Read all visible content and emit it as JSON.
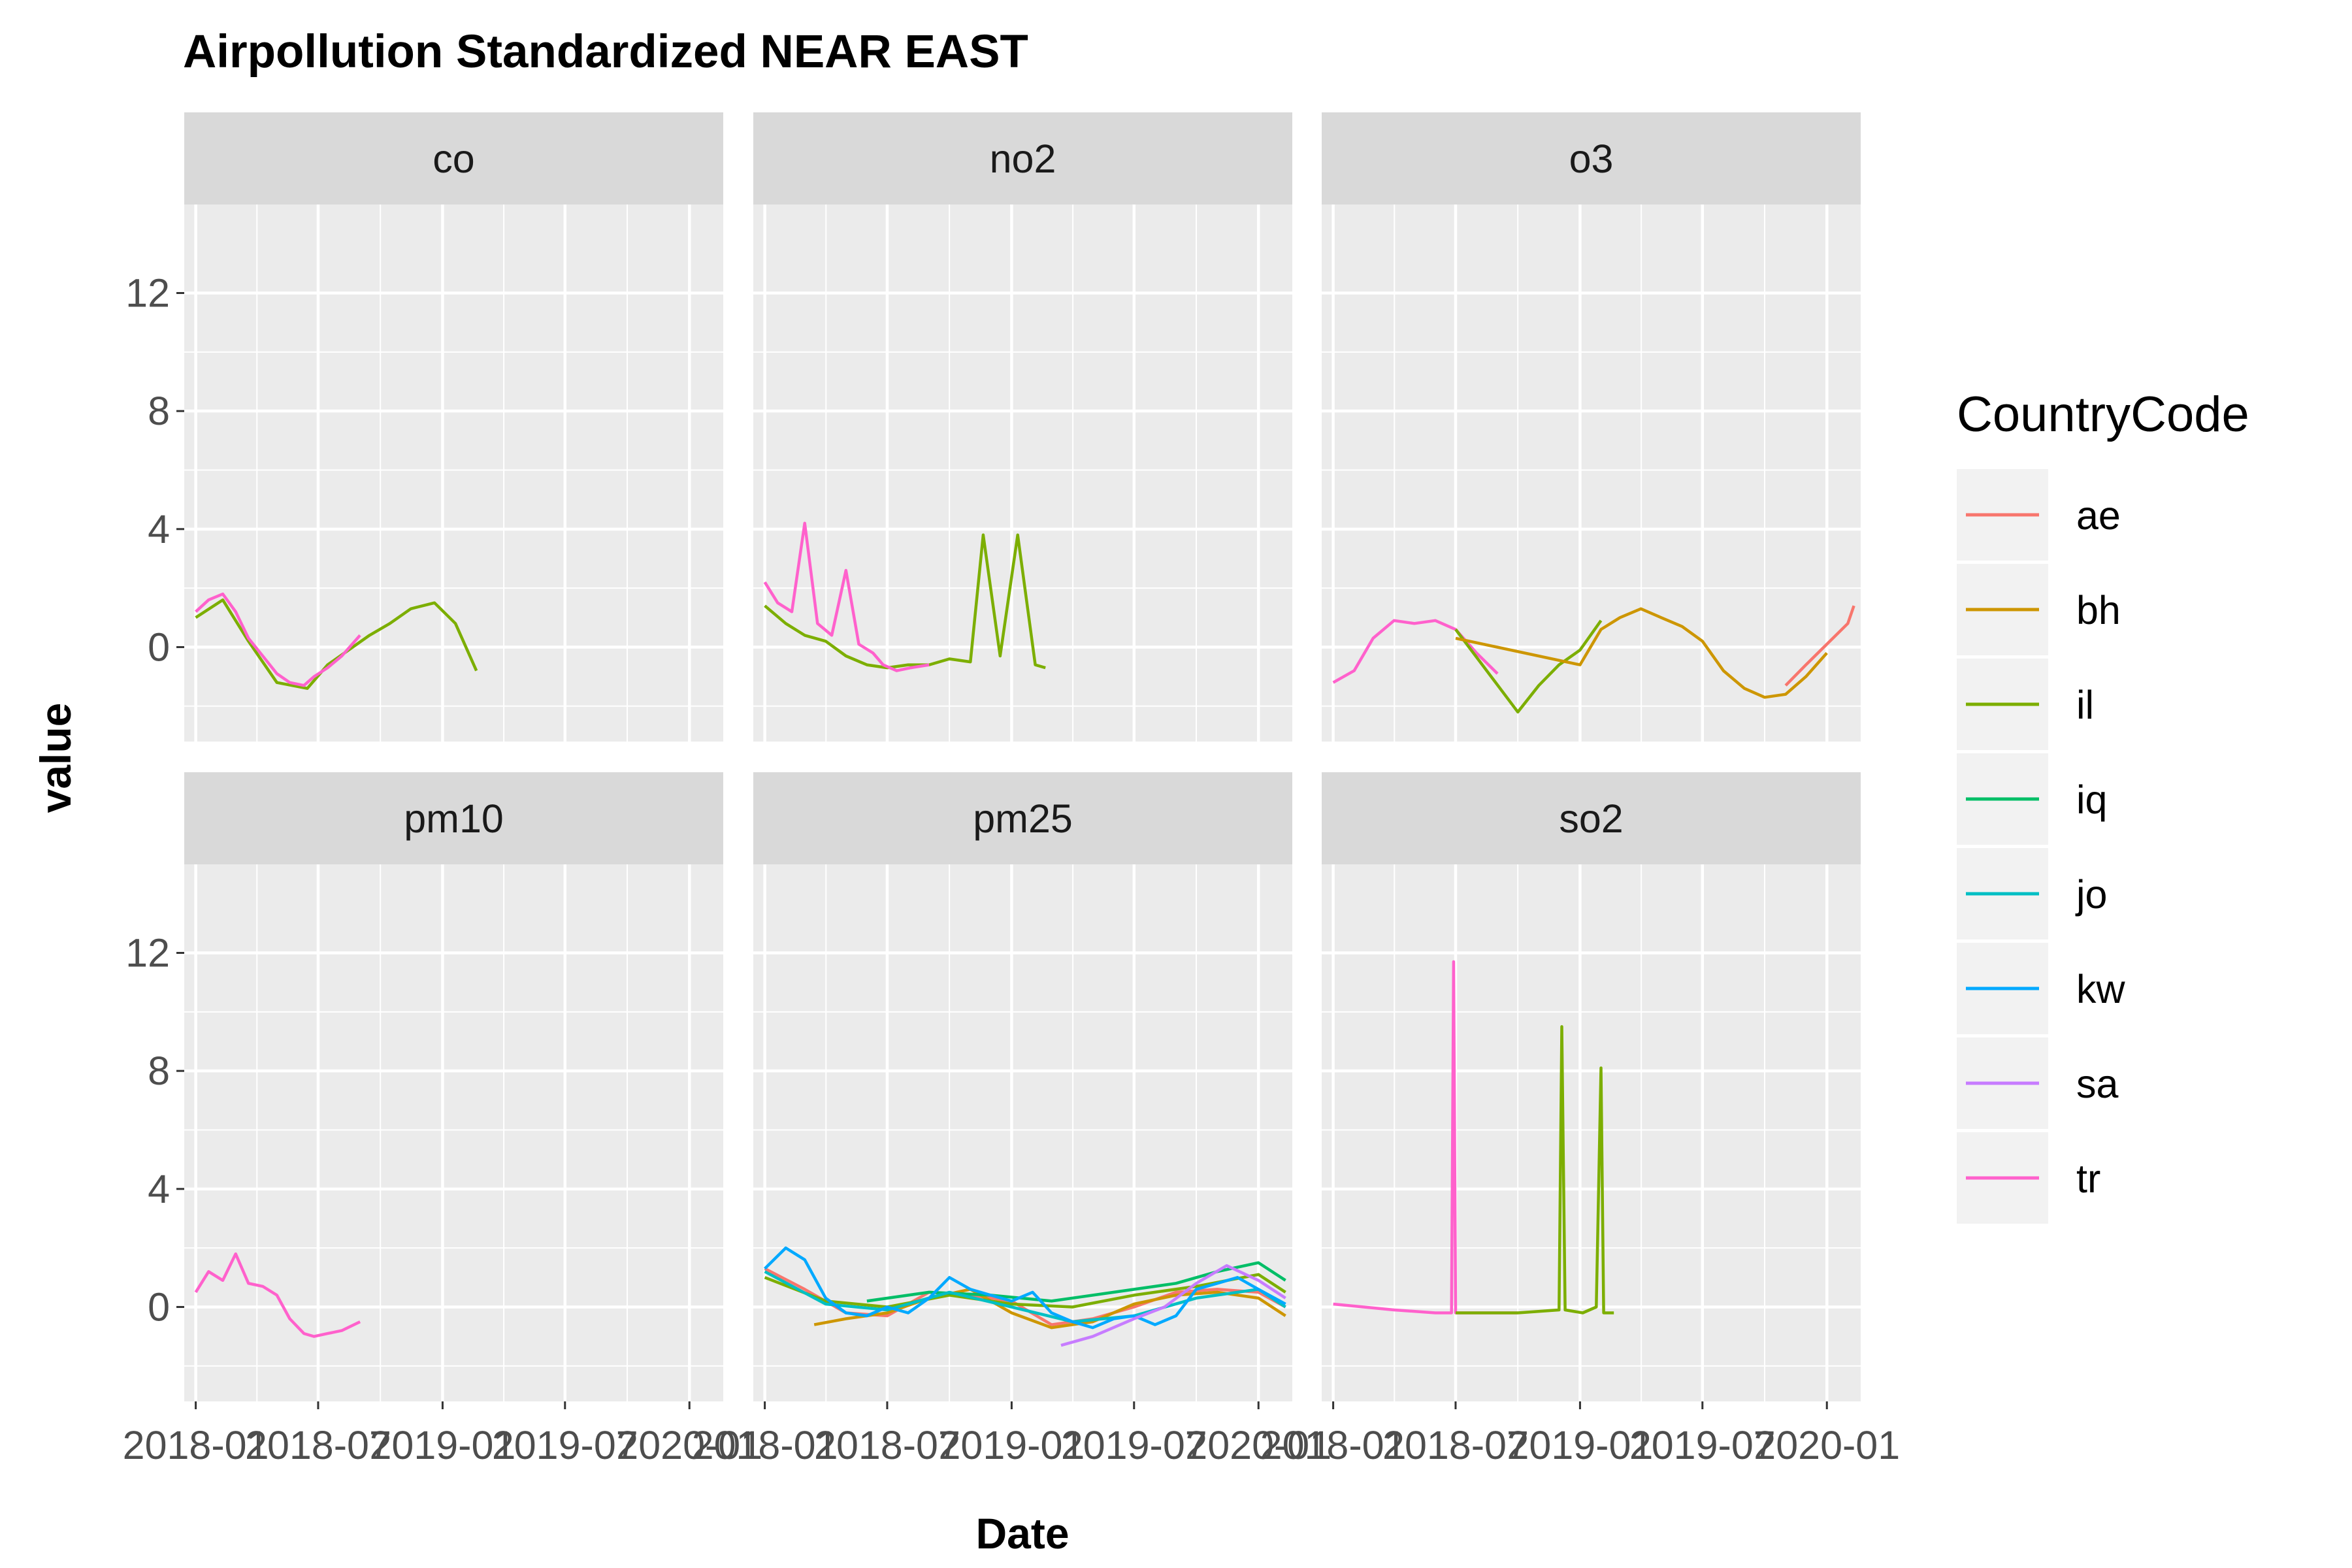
{
  "chart_data": {
    "type": "line",
    "title": "Airpollution Standardized NEAR EAST",
    "xlabel": "Date",
    "ylabel": "value",
    "x_tick_labels": [
      "2018-01",
      "2018-07",
      "2019-01",
      "2019-07",
      "2020-01"
    ],
    "x_tick_dates": [
      "2018-01-01",
      "2018-07-01",
      "2019-01-01",
      "2019-07-01",
      "2020-01-01"
    ],
    "xlim": [
      "2017-12-15",
      "2020-02-20"
    ],
    "y_ticks": [
      0,
      4,
      8,
      12
    ],
    "ylim": [
      -3.2,
      15
    ],
    "grid": true,
    "legend": {
      "title": "CountryCode",
      "placement": "right",
      "items": [
        {
          "code": "ae",
          "color": "#F8766D"
        },
        {
          "code": "bh",
          "color": "#CD9600"
        },
        {
          "code": "il",
          "color": "#7CAE00"
        },
        {
          "code": "iq",
          "color": "#00BE67"
        },
        {
          "code": "jo",
          "color": "#00BFC4"
        },
        {
          "code": "kw",
          "color": "#00A9FF"
        },
        {
          "code": "sa",
          "color": "#C77CFF"
        },
        {
          "code": "tr",
          "color": "#FF61CC"
        }
      ]
    },
    "facets": [
      {
        "name": "co",
        "series": [
          {
            "country": "il",
            "x": [
              "2018-01-01",
              "2018-02-10",
              "2018-03-20",
              "2018-05-01",
              "2018-06-15",
              "2018-07-15",
              "2018-08-15",
              "2018-09-15",
              "2018-10-15",
              "2018-11-15",
              "2018-12-20",
              "2019-01-20",
              "2019-02-20"
            ],
            "y": [
              1.0,
              1.6,
              0.2,
              -1.2,
              -1.4,
              -0.6,
              -0.1,
              0.4,
              0.8,
              1.3,
              1.5,
              0.8,
              -0.8
            ]
          },
          {
            "country": "tr",
            "x": [
              "2018-01-01",
              "2018-01-20",
              "2018-02-10",
              "2018-03-01",
              "2018-03-20",
              "2018-04-10",
              "2018-05-01",
              "2018-05-20",
              "2018-06-10",
              "2018-06-25",
              "2018-07-15",
              "2018-08-05",
              "2018-09-01"
            ],
            "y": [
              1.2,
              1.6,
              1.8,
              1.2,
              0.3,
              -0.3,
              -0.9,
              -1.2,
              -1.3,
              -1.0,
              -0.7,
              -0.3,
              0.4
            ]
          }
        ]
      },
      {
        "name": "no2",
        "series": [
          {
            "country": "il",
            "x": [
              "2018-01-01",
              "2018-02-01",
              "2018-03-01",
              "2018-04-01",
              "2018-05-01",
              "2018-06-01",
              "2018-07-01",
              "2018-08-01",
              "2018-09-01",
              "2018-10-01",
              "2018-11-01",
              "2018-11-20",
              "2018-12-15",
              "2019-01-10",
              "2019-02-05",
              "2019-02-20"
            ],
            "y": [
              1.4,
              0.8,
              0.4,
              0.2,
              -0.3,
              -0.6,
              -0.7,
              -0.6,
              -0.6,
              -0.4,
              -0.5,
              3.8,
              -0.3,
              3.8,
              -0.6,
              -0.7
            ]
          },
          {
            "country": "tr",
            "x": [
              "2018-01-01",
              "2018-01-20",
              "2018-02-10",
              "2018-03-01",
              "2018-03-20",
              "2018-04-10",
              "2018-05-01",
              "2018-05-20",
              "2018-06-10",
              "2018-06-25",
              "2018-07-15",
              "2018-08-05",
              "2018-09-01"
            ],
            "y": [
              2.2,
              1.5,
              1.2,
              4.2,
              0.8,
              0.4,
              2.6,
              0.1,
              -0.2,
              -0.6,
              -0.8,
              -0.7,
              -0.6
            ]
          }
        ]
      },
      {
        "name": "o3",
        "series": [
          {
            "country": "tr",
            "x": [
              "2018-01-01",
              "2018-02-01",
              "2018-03-01",
              "2018-04-01",
              "2018-05-01",
              "2018-06-01",
              "2018-07-01",
              "2018-08-01",
              "2018-09-01"
            ],
            "y": [
              -1.2,
              -0.8,
              0.3,
              0.9,
              0.8,
              0.9,
              0.6,
              -0.2,
              -0.9
            ]
          },
          {
            "country": "il",
            "x": [
              "2018-07-01",
              "2018-10-01",
              "2018-11-01",
              "2018-12-01",
              "2019-01-01",
              "2019-02-01"
            ],
            "y": [
              0.6,
              -2.2,
              -1.3,
              -0.6,
              -0.1,
              0.9
            ]
          },
          {
            "country": "bh",
            "x": [
              "2018-07-01",
              "2019-01-01",
              "2019-02-01",
              "2019-03-01",
              "2019-04-01",
              "2019-05-01",
              "2019-06-01",
              "2019-07-01",
              "2019-08-01",
              "2019-09-01",
              "2019-10-01",
              "2019-11-01",
              "2019-12-01",
              "2020-01-01"
            ],
            "y": [
              0.3,
              -0.6,
              0.6,
              1.0,
              1.3,
              1.0,
              0.7,
              0.2,
              -0.8,
              -1.4,
              -1.7,
              -1.6,
              -1.0,
              -0.2
            ]
          },
          {
            "country": "ae",
            "x": [
              "2019-11-01",
              "2019-12-01",
              "2020-01-01",
              "2020-02-01",
              "2020-02-10"
            ],
            "y": [
              -1.3,
              -0.6,
              0.1,
              0.8,
              1.4
            ]
          }
        ]
      },
      {
        "name": "pm10",
        "series": [
          {
            "country": "tr",
            "x": [
              "2018-01-01",
              "2018-01-20",
              "2018-02-10",
              "2018-03-01",
              "2018-03-20",
              "2018-04-10",
              "2018-05-01",
              "2018-05-20",
              "2018-06-10",
              "2018-06-25",
              "2018-07-15",
              "2018-08-05",
              "2018-09-01"
            ],
            "y": [
              0.5,
              1.2,
              0.9,
              1.8,
              0.8,
              0.7,
              0.4,
              -0.4,
              -0.9,
              -1.0,
              -0.9,
              -0.8,
              -0.5
            ]
          }
        ]
      },
      {
        "name": "pm25",
        "series": [
          {
            "country": "ae",
            "x": [
              "2018-01-01",
              "2018-03-01",
              "2018-05-01",
              "2018-07-01",
              "2018-09-01",
              "2018-11-01",
              "2019-01-01",
              "2019-03-01",
              "2019-05-01",
              "2019-07-01",
              "2019-09-01",
              "2019-11-01",
              "2020-01-01",
              "2020-02-10"
            ],
            "y": [
              1.3,
              0.6,
              -0.2,
              -0.3,
              0.5,
              0.4,
              0.2,
              -0.6,
              -0.4,
              0.0,
              0.5,
              0.6,
              0.5,
              0.0
            ]
          },
          {
            "country": "bh",
            "x": [
              "2018-03-15",
              "2018-05-01",
              "2018-07-01",
              "2018-09-01",
              "2018-11-01",
              "2019-01-01",
              "2019-03-01",
              "2019-05-01",
              "2019-07-01",
              "2019-09-01",
              "2019-11-01",
              "2020-01-01",
              "2020-02-10"
            ],
            "y": [
              -0.6,
              -0.4,
              -0.2,
              0.3,
              0.6,
              -0.2,
              -0.7,
              -0.5,
              0.1,
              0.4,
              0.5,
              0.3,
              -0.3
            ]
          },
          {
            "country": "il",
            "x": [
              "2018-01-01",
              "2018-04-01",
              "2018-07-01",
              "2018-10-01",
              "2019-01-01",
              "2019-04-01",
              "2019-07-01",
              "2019-10-01",
              "2020-01-01",
              "2020-02-10"
            ],
            "y": [
              1.0,
              0.2,
              0.0,
              0.4,
              0.1,
              0.0,
              0.4,
              0.7,
              1.1,
              0.5
            ]
          },
          {
            "country": "iq",
            "x": [
              "2018-06-01",
              "2018-09-01",
              "2018-12-01",
              "2019-03-01",
              "2019-06-01",
              "2019-09-01",
              "2019-11-01",
              "2020-01-01",
              "2020-02-10"
            ],
            "y": [
              0.2,
              0.5,
              0.4,
              0.2,
              0.5,
              0.8,
              1.2,
              1.5,
              0.9
            ]
          },
          {
            "country": "jo",
            "x": [
              "2018-01-01",
              "2018-04-01",
              "2018-07-01",
              "2018-10-01",
              "2019-01-01",
              "2019-04-01",
              "2019-07-01",
              "2019-10-01",
              "2020-01-01",
              "2020-02-10"
            ],
            "y": [
              1.2,
              0.1,
              -0.1,
              0.5,
              0.0,
              -0.5,
              -0.3,
              0.3,
              0.6,
              0.0
            ]
          },
          {
            "country": "kw",
            "x": [
              "2018-01-01",
              "2018-02-01",
              "2018-03-01",
              "2018-04-01",
              "2018-05-01",
              "2018-06-01",
              "2018-07-01",
              "2018-08-01",
              "2018-09-01",
              "2018-10-01",
              "2018-11-01",
              "2018-12-01",
              "2019-01-01",
              "2019-02-01",
              "2019-03-01",
              "2019-04-01",
              "2019-05-01",
              "2019-06-01",
              "2019-07-01",
              "2019-08-01",
              "2019-09-01",
              "2019-10-01",
              "2019-11-01",
              "2019-12-01",
              "2020-01-01",
              "2020-02-10"
            ],
            "y": [
              1.3,
              2.0,
              1.6,
              0.3,
              -0.2,
              -0.3,
              0.0,
              -0.2,
              0.3,
              1.0,
              0.6,
              0.4,
              0.2,
              0.5,
              -0.2,
              -0.5,
              -0.7,
              -0.4,
              -0.3,
              -0.6,
              -0.3,
              0.6,
              0.8,
              1.0,
              0.6,
              0.1
            ]
          },
          {
            "country": "sa",
            "x": [
              "2019-03-15",
              "2019-05-01",
              "2019-07-01",
              "2019-08-15",
              "2019-10-01",
              "2019-11-15",
              "2020-01-01",
              "2020-02-10"
            ],
            "y": [
              -1.3,
              -1.0,
              -0.4,
              0.0,
              0.8,
              1.4,
              0.9,
              0.3
            ]
          }
        ]
      },
      {
        "name": "so2",
        "series": [
          {
            "country": "tr",
            "x": [
              "2018-01-01",
              "2018-02-15",
              "2018-04-01",
              "2018-06-01",
              "2018-06-25",
              "2018-06-28",
              "2018-07-01",
              "2018-07-04",
              "2018-08-15",
              "2018-10-01"
            ],
            "y": [
              0.1,
              0.0,
              -0.1,
              -0.2,
              -0.2,
              11.7,
              -0.2,
              -0.2,
              -0.2,
              -0.2
            ]
          },
          {
            "country": "il",
            "x": [
              "2018-07-01",
              "2018-10-01",
              "2018-12-01",
              "2018-12-05",
              "2018-12-10",
              "2019-01-05",
              "2019-01-25",
              "2019-02-01",
              "2019-02-05",
              "2019-02-20"
            ],
            "y": [
              -0.2,
              -0.2,
              -0.1,
              9.5,
              -0.1,
              -0.2,
              0.0,
              8.1,
              -0.2,
              -0.2
            ]
          }
        ]
      }
    ]
  }
}
